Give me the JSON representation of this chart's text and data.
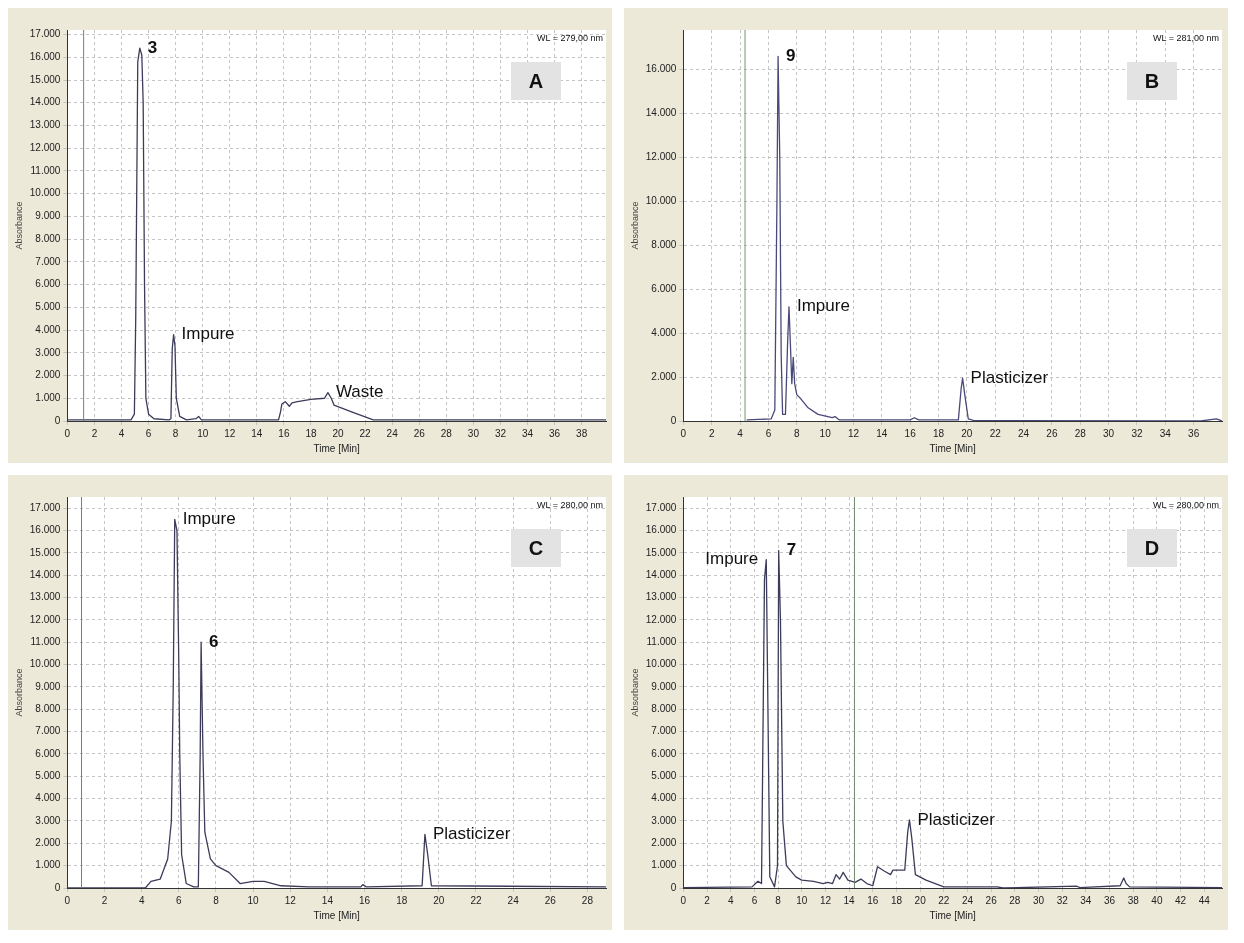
{
  "chart_data": [
    {
      "type": "line",
      "title": "A",
      "subtitle": "WL = 279,00 nm",
      "xlabel": "Time [Min]",
      "ylabel": "Absorbance",
      "xlim": [
        0,
        39.8
      ],
      "ylim": [
        0,
        17200
      ],
      "xticks": [
        0,
        2,
        4,
        6,
        8,
        10,
        12,
        14,
        16,
        18,
        20,
        22,
        24,
        26,
        28,
        30,
        32,
        34,
        36,
        38
      ],
      "yticks": [
        {
          "value": 0,
          "label": "0"
        },
        {
          "value": 1000,
          "label": "1.000"
        },
        {
          "value": 2000,
          "label": "2.000"
        },
        {
          "value": 3000,
          "label": "3.000"
        },
        {
          "value": 4000,
          "label": "4.000"
        },
        {
          "value": 5000,
          "label": "5.000"
        },
        {
          "value": 6000,
          "label": "6.000"
        },
        {
          "value": 7000,
          "label": "7.000"
        },
        {
          "value": 8000,
          "label": "8.000"
        },
        {
          "value": 9000,
          "label": "9.000"
        },
        {
          "value": 10000,
          "label": "10.000"
        },
        {
          "value": 11000,
          "label": "11.000"
        },
        {
          "value": 12000,
          "label": "12.000"
        },
        {
          "value": 13000,
          "label": "13.000"
        },
        {
          "value": 14000,
          "label": "14.000"
        },
        {
          "value": 15000,
          "label": "15.000"
        },
        {
          "value": 16000,
          "label": "16.000"
        },
        {
          "value": 17000,
          "label": "17.000"
        }
      ],
      "grid": true,
      "marker": "none",
      "line_style": "solid",
      "series": [
        {
          "color": "#3c3c5a",
          "x": [
            0,
            4.7,
            4.95,
            5.05,
            5.2,
            5.35,
            5.5,
            5.6,
            5.7,
            5.8,
            6.0,
            6.4,
            7.5,
            7.65,
            7.75,
            7.85,
            7.95,
            8.05,
            8.3,
            8.8,
            9.5,
            9.7,
            9.9,
            15.6,
            15.75,
            15.85,
            16.1,
            16.4,
            16.6,
            17,
            18,
            19,
            19.25,
            19.5,
            19.7,
            21,
            22.6,
            39.8
          ],
          "values": [
            50,
            50,
            300,
            4500,
            15800,
            16400,
            16100,
            14000,
            6000,
            1000,
            300,
            100,
            50,
            100,
            3200,
            3800,
            3300,
            1000,
            200,
            50,
            100,
            200,
            50,
            50,
            400,
            750,
            850,
            650,
            800,
            850,
            950,
            1000,
            1250,
            1000,
            700,
            400,
            50,
            50
          ]
        }
      ],
      "ref_lines": [
        {
          "axis": "x",
          "value": 1.2,
          "color": "#6b8a6b"
        }
      ],
      "annotations": [
        {
          "text": "3",
          "x": 5.35,
          "y": 16400
        },
        {
          "text": "Impure",
          "x": 7.85,
          "y": 3800
        },
        {
          "text": "Waste",
          "x": 19.25,
          "y": 1250
        }
      ]
    },
    {
      "type": "line",
      "title": "B",
      "subtitle": "WL = 281,00 nm",
      "xlabel": "Time [Min]",
      "ylabel": "Absorbance",
      "xlim": [
        0,
        38
      ],
      "ylim": [
        0,
        17800
      ],
      "xticks": [
        0,
        2,
        4,
        6,
        8,
        10,
        12,
        14,
        16,
        18,
        20,
        22,
        24,
        26,
        28,
        30,
        32,
        34,
        36
      ],
      "yticks": [
        {
          "value": 0,
          "label": "0"
        },
        {
          "value": 2000,
          "label": "2.000"
        },
        {
          "value": 4000,
          "label": "4.000"
        },
        {
          "value": 6000,
          "label": "6.000"
        },
        {
          "value": 8000,
          "label": "8.000"
        },
        {
          "value": 10000,
          "label": "10.000"
        },
        {
          "value": 12000,
          "label": "12.000"
        },
        {
          "value": 14000,
          "label": "14.000"
        },
        {
          "value": 16000,
          "label": "16.000"
        }
      ],
      "grid": true,
      "marker": "none",
      "line_style": "solid",
      "series": [
        {
          "color": "#4a4a7a",
          "x": [
            4.5,
            6.2,
            6.45,
            6.6,
            6.68,
            6.8,
            6.9,
            7.0,
            7.2,
            7.35,
            7.45,
            7.55,
            7.65,
            7.75,
            7.85,
            8.0,
            8.3,
            8.8,
            9.5,
            10.5,
            10.7,
            11,
            16,
            16.3,
            16.6,
            19.4,
            19.6,
            19.7,
            19.85,
            20.1,
            20.5,
            36.5,
            37.6,
            38
          ],
          "values": [
            50,
            100,
            500,
            10000,
            16600,
            12000,
            3000,
            300,
            300,
            3500,
            5200,
            3500,
            1700,
            2900,
            1700,
            1200,
            1000,
            600,
            300,
            150,
            200,
            50,
            50,
            150,
            50,
            50,
            1500,
            1950,
            1200,
            100,
            20,
            0,
            100,
            0
          ]
        }
      ],
      "ref_lines": [
        {
          "axis": "x",
          "value": 4.35,
          "color": "#6b9a6b"
        }
      ],
      "annotations": [
        {
          "text": "9",
          "x": 6.68,
          "y": 16600
        },
        {
          "text": "Impure",
          "x": 7.45,
          "y": 5200
        },
        {
          "text": "Plasticizer",
          "x": 19.7,
          "y": 1950
        }
      ]
    },
    {
      "type": "line",
      "title": "C",
      "subtitle": "WL = 280,00 nm",
      "xlabel": "Time [Min]",
      "ylabel": "Absorbance",
      "xlim": [
        0,
        29
      ],
      "ylim": [
        0,
        17500
      ],
      "xticks": [
        0,
        2,
        4,
        6,
        8,
        10,
        12,
        14,
        16,
        18,
        20,
        22,
        24,
        26,
        28
      ],
      "yticks": [
        {
          "value": 0,
          "label": "0"
        },
        {
          "value": 1000,
          "label": "1.000"
        },
        {
          "value": 2000,
          "label": "2.000"
        },
        {
          "value": 3000,
          "label": "3.000"
        },
        {
          "value": 4000,
          "label": "4.000"
        },
        {
          "value": 5000,
          "label": "5.000"
        },
        {
          "value": 6000,
          "label": "6.000"
        },
        {
          "value": 7000,
          "label": "7.000"
        },
        {
          "value": 8000,
          "label": "8.000"
        },
        {
          "value": 9000,
          "label": "9.000"
        },
        {
          "value": 10000,
          "label": "10.000"
        },
        {
          "value": 11000,
          "label": "11.000"
        },
        {
          "value": 12000,
          "label": "12.000"
        },
        {
          "value": 13000,
          "label": "13.000"
        },
        {
          "value": 14000,
          "label": "14.000"
        },
        {
          "value": 15000,
          "label": "15.000"
        },
        {
          "value": 16000,
          "label": "16.000"
        },
        {
          "value": 17000,
          "label": "17.000"
        }
      ],
      "grid": true,
      "marker": "none",
      "line_style": "solid",
      "series": [
        {
          "color": "#3c3c5a",
          "x": [
            0,
            4.2,
            4.5,
            5.0,
            5.4,
            5.6,
            5.7,
            5.78,
            5.9,
            6.0,
            6.05,
            6.15,
            6.4,
            6.8,
            7.05,
            7.15,
            7.2,
            7.3,
            7.4,
            7.7,
            8,
            8.7,
            9.3,
            10,
            10.6,
            11.5,
            13,
            15.8,
            15.9,
            16.1,
            19.1,
            19.25,
            19.4,
            19.6,
            29
          ],
          "values": [
            0,
            0,
            300,
            400,
            1300,
            3000,
            9000,
            16500,
            16000,
            10000,
            6000,
            1500,
            200,
            50,
            50,
            6000,
            11000,
            6000,
            2500,
            1300,
            1000,
            700,
            200,
            300,
            300,
            100,
            50,
            50,
            150,
            50,
            100,
            2400,
            1500,
            100,
            50
          ]
        }
      ],
      "ref_lines": [
        {
          "axis": "x",
          "value": 0.76,
          "color": "#6b8a6b"
        }
      ],
      "annotations": [
        {
          "text": "Impure",
          "x": 5.78,
          "y": 16500
        },
        {
          "text": "6",
          "x": 7.2,
          "y": 11000
        },
        {
          "text": "Plasticizer",
          "x": 19.25,
          "y": 2400
        }
      ]
    },
    {
      "type": "line",
      "title": "D",
      "subtitle": "WL = 280,00 nm",
      "xlabel": "Time [Min]",
      "ylabel": "Absorbance",
      "xlim": [
        0,
        45.5
      ],
      "ylim": [
        0,
        17500
      ],
      "xticks": [
        0,
        2,
        4,
        6,
        8,
        10,
        12,
        14,
        16,
        18,
        20,
        22,
        24,
        26,
        28,
        30,
        32,
        34,
        36,
        38,
        40,
        42,
        44
      ],
      "yticks": [
        {
          "value": 0,
          "label": "0"
        },
        {
          "value": 1000,
          "label": "1.000"
        },
        {
          "value": 2000,
          "label": "2.000"
        },
        {
          "value": 3000,
          "label": "3.000"
        },
        {
          "value": 4000,
          "label": "4.000"
        },
        {
          "value": 5000,
          "label": "5.000"
        },
        {
          "value": 6000,
          "label": "6.000"
        },
        {
          "value": 7000,
          "label": "7.000"
        },
        {
          "value": 8000,
          "label": "8.000"
        },
        {
          "value": 9000,
          "label": "9.000"
        },
        {
          "value": 10000,
          "label": "10.000"
        },
        {
          "value": 11000,
          "label": "11.000"
        },
        {
          "value": 12000,
          "label": "12.000"
        },
        {
          "value": 13000,
          "label": "13.000"
        },
        {
          "value": 14000,
          "label": "14.000"
        },
        {
          "value": 15000,
          "label": "15.000"
        },
        {
          "value": 16000,
          "label": "16.000"
        },
        {
          "value": 17000,
          "label": "17.000"
        }
      ],
      "grid": true,
      "marker": "none",
      "line_style": "solid",
      "series": [
        {
          "color": "#3c3c5a",
          "x": [
            0,
            5.8,
            6.3,
            6.6,
            6.85,
            7.0,
            7.1,
            7.3,
            7.7,
            7.95,
            8.05,
            8.2,
            8.4,
            8.7,
            9.5,
            10,
            11,
            11.8,
            12.2,
            12.6,
            12.9,
            13.2,
            13.5,
            13.9,
            14.5,
            15,
            15.5,
            16,
            16.4,
            17,
            17.5,
            17.7,
            18.7,
            18.95,
            19.1,
            19.3,
            19.6,
            20.5,
            21.5,
            22,
            26.5,
            27,
            33.2,
            33.5,
            36.9,
            37.2,
            37.4,
            37.7,
            45.5
          ],
          "values": [
            20,
            50,
            300,
            200,
            13800,
            14700,
            10000,
            500,
            50,
            1000,
            15100,
            12000,
            3000,
            1000,
            500,
            350,
            300,
            200,
            250,
            200,
            600,
            400,
            700,
            350,
            250,
            400,
            200,
            100,
            950,
            750,
            600,
            800,
            800,
            2500,
            3050,
            2200,
            600,
            350,
            150,
            50,
            50,
            0,
            80,
            20,
            100,
            450,
            200,
            50,
            20
          ]
        }
      ],
      "ref_lines": [
        {
          "axis": "x",
          "value": 14.45,
          "color": "#6b8a6b"
        }
      ],
      "annotations": [
        {
          "text": "Impure",
          "x": 7.0,
          "y": 14700
        },
        {
          "text": "7",
          "x": 8.05,
          "y": 15100
        },
        {
          "text": "Plasticizer",
          "x": 19.1,
          "y": 3050
        }
      ]
    }
  ]
}
